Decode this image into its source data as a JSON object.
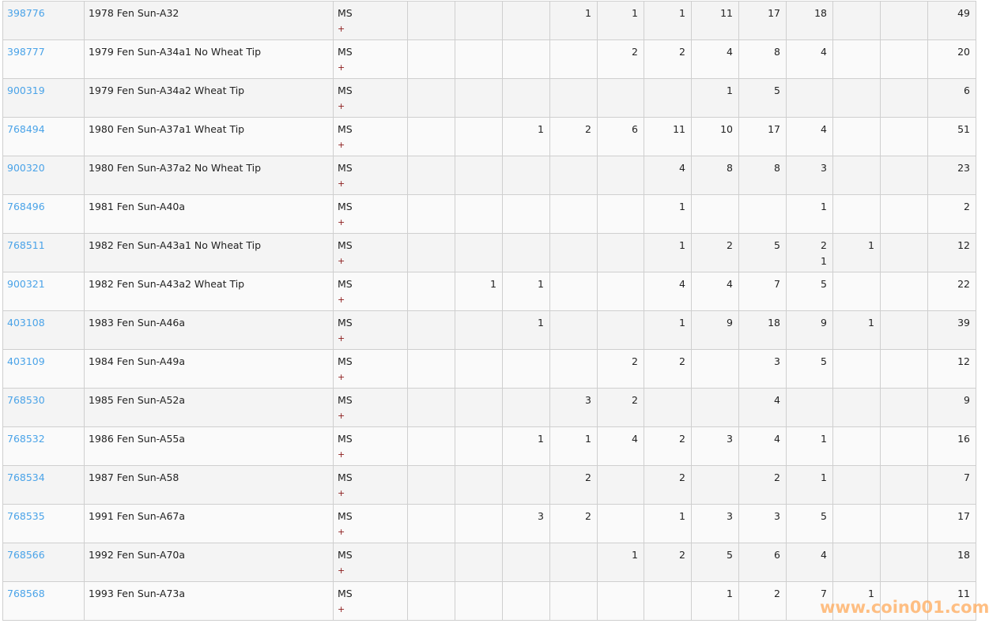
{
  "colors": {
    "link": "#4aa3e8",
    "plus": "#8b1a1a",
    "row_odd": "#f4f4f4",
    "row_even": "#fafafa",
    "watermark": "#ffaa5a"
  },
  "watermark": "www.coin001.com",
  "rows": [
    {
      "id": "398776",
      "name": "1978 Fen Sun-A32",
      "grade": "MS",
      "plus": "+",
      "cells": [
        "",
        "",
        "",
        "1",
        "1",
        "1",
        "11",
        "17",
        "18",
        "",
        ""
      ],
      "sub": [
        "",
        "",
        "",
        "",
        "",
        "",
        "",
        "",
        "",
        "",
        ""
      ],
      "total": "49"
    },
    {
      "id": "398777",
      "name": "1979 Fen Sun-A34a1 No Wheat Tip",
      "grade": "MS",
      "plus": "+",
      "cells": [
        "",
        "",
        "",
        "",
        "2",
        "2",
        "4",
        "8",
        "4",
        "",
        ""
      ],
      "sub": [
        "",
        "",
        "",
        "",
        "",
        "",
        "",
        "",
        "",
        "",
        ""
      ],
      "total": "20"
    },
    {
      "id": "900319",
      "name": "1979 Fen Sun-A34a2 Wheat Tip",
      "grade": "MS",
      "plus": "+",
      "cells": [
        "",
        "",
        "",
        "",
        "",
        "",
        "1",
        "5",
        "",
        "",
        ""
      ],
      "sub": [
        "",
        "",
        "",
        "",
        "",
        "",
        "",
        "",
        "",
        "",
        ""
      ],
      "total": "6"
    },
    {
      "id": "768494",
      "name": "1980 Fen Sun-A37a1 Wheat Tip",
      "grade": "MS",
      "plus": "+",
      "cells": [
        "",
        "",
        "1",
        "2",
        "6",
        "11",
        "10",
        "17",
        "4",
        "",
        ""
      ],
      "sub": [
        "",
        "",
        "",
        "",
        "",
        "",
        "",
        "",
        "",
        "",
        ""
      ],
      "total": "51"
    },
    {
      "id": "900320",
      "name": "1980 Fen Sun-A37a2 No Wheat Tip",
      "grade": "MS",
      "plus": "+",
      "cells": [
        "",
        "",
        "",
        "",
        "",
        "4",
        "8",
        "8",
        "3",
        "",
        ""
      ],
      "sub": [
        "",
        "",
        "",
        "",
        "",
        "",
        "",
        "",
        "",
        "",
        ""
      ],
      "total": "23"
    },
    {
      "id": "768496",
      "name": "1981 Fen Sun-A40a",
      "grade": "MS",
      "plus": "+",
      "cells": [
        "",
        "",
        "",
        "",
        "",
        "1",
        "",
        "",
        "1",
        "",
        ""
      ],
      "sub": [
        "",
        "",
        "",
        "",
        "",
        "",
        "",
        "",
        "",
        "",
        ""
      ],
      "total": "2"
    },
    {
      "id": "768511",
      "name": "1982 Fen Sun-A43a1 No Wheat Tip",
      "grade": "MS",
      "plus": "+",
      "cells": [
        "",
        "",
        "",
        "",
        "",
        "1",
        "2",
        "5",
        "2",
        "1",
        ""
      ],
      "sub": [
        "",
        "",
        "",
        "",
        "",
        "",
        "",
        "",
        "1",
        "",
        ""
      ],
      "total": "12"
    },
    {
      "id": "900321",
      "name": "1982 Fen Sun-A43a2 Wheat Tip",
      "grade": "MS",
      "plus": "+",
      "cells": [
        "",
        "1",
        "1",
        "",
        "",
        "4",
        "4",
        "7",
        "5",
        "",
        ""
      ],
      "sub": [
        "",
        "",
        "",
        "",
        "",
        "",
        "",
        "",
        "",
        "",
        ""
      ],
      "total": "22"
    },
    {
      "id": "403108",
      "name": "1983 Fen Sun-A46a",
      "grade": "MS",
      "plus": "+",
      "cells": [
        "",
        "",
        "1",
        "",
        "",
        "1",
        "9",
        "18",
        "9",
        "1",
        ""
      ],
      "sub": [
        "",
        "",
        "",
        "",
        "",
        "",
        "",
        "",
        "",
        "",
        ""
      ],
      "total": "39"
    },
    {
      "id": "403109",
      "name": "1984 Fen Sun-A49a",
      "grade": "MS",
      "plus": "+",
      "cells": [
        "",
        "",
        "",
        "",
        "2",
        "2",
        "",
        "3",
        "5",
        "",
        ""
      ],
      "sub": [
        "",
        "",
        "",
        "",
        "",
        "",
        "",
        "",
        "",
        "",
        ""
      ],
      "total": "12"
    },
    {
      "id": "768530",
      "name": "1985 Fen Sun-A52a",
      "grade": "MS",
      "plus": "+",
      "cells": [
        "",
        "",
        "",
        "3",
        "2",
        "",
        "",
        "4",
        "",
        "",
        ""
      ],
      "sub": [
        "",
        "",
        "",
        "",
        "",
        "",
        "",
        "",
        "",
        "",
        ""
      ],
      "total": "9"
    },
    {
      "id": "768532",
      "name": "1986 Fen Sun-A55a",
      "grade": "MS",
      "plus": "+",
      "cells": [
        "",
        "",
        "1",
        "1",
        "4",
        "2",
        "3",
        "4",
        "1",
        "",
        ""
      ],
      "sub": [
        "",
        "",
        "",
        "",
        "",
        "",
        "",
        "",
        "",
        "",
        ""
      ],
      "total": "16"
    },
    {
      "id": "768534",
      "name": "1987 Fen Sun-A58",
      "grade": "MS",
      "plus": "+",
      "cells": [
        "",
        "",
        "",
        "2",
        "",
        "2",
        "",
        "2",
        "1",
        "",
        ""
      ],
      "sub": [
        "",
        "",
        "",
        "",
        "",
        "",
        "",
        "",
        "",
        "",
        ""
      ],
      "total": "7"
    },
    {
      "id": "768535",
      "name": "1991 Fen Sun-A67a",
      "grade": "MS",
      "plus": "+",
      "cells": [
        "",
        "",
        "3",
        "2",
        "",
        "1",
        "3",
        "3",
        "5",
        "",
        ""
      ],
      "sub": [
        "",
        "",
        "",
        "",
        "",
        "",
        "",
        "",
        "",
        "",
        ""
      ],
      "total": "17"
    },
    {
      "id": "768566",
      "name": "1992 Fen Sun-A70a",
      "grade": "MS",
      "plus": "+",
      "cells": [
        "",
        "",
        "",
        "",
        "1",
        "2",
        "5",
        "6",
        "4",
        "",
        ""
      ],
      "sub": [
        "",
        "",
        "",
        "",
        "",
        "",
        "",
        "",
        "",
        "",
        ""
      ],
      "total": "18"
    },
    {
      "id": "768568",
      "name": "1993 Fen Sun-A73a",
      "grade": "MS",
      "plus": "+",
      "cells": [
        "",
        "",
        "",
        "",
        "",
        "",
        "1",
        "2",
        "7",
        "1",
        ""
      ],
      "sub": [
        "",
        "",
        "",
        "",
        "",
        "",
        "",
        "",
        "",
        "",
        ""
      ],
      "total": "11"
    }
  ]
}
